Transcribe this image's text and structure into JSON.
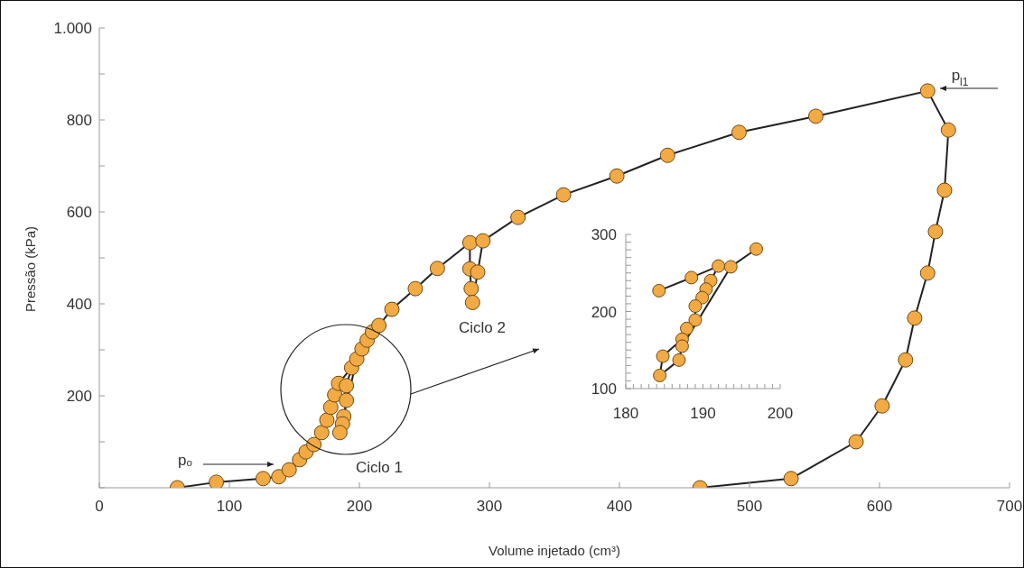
{
  "chart_data": [
    {
      "type": "line",
      "xlabel": "Volume injetado (cm³)",
      "ylabel": "Pressão (kPa)",
      "xlim": [
        0,
        700
      ],
      "xticks": [
        0,
        100,
        200,
        300,
        400,
        500,
        600,
        700
      ],
      "ylim": [
        0,
        1000
      ],
      "yticks": [
        {
          "value": 0,
          "label": null
        },
        {
          "value": 100,
          "label": null
        },
        200,
        {
          "value": 300,
          "label": null
        },
        400,
        {
          "value": 500,
          "label": null
        },
        600,
        {
          "value": 700,
          "label": null
        },
        800,
        {
          "value": 900,
          "label": null
        },
        {
          "value": 1000,
          "label": "1.000"
        }
      ],
      "marker": "circle",
      "series": [
        {
          "color": "#f2aa45",
          "x": [
            60,
            90,
            126,
            138,
            146,
            154,
            159,
            165,
            171,
            175,
            178,
            181,
            184,
            194,
            190,
            190,
            188,
            187,
            185,
            198,
            202,
            206,
            210,
            215,
            225,
            243,
            260,
            285,
            285,
            286,
            287,
            291,
            295,
            322,
            357,
            398,
            437,
            492,
            551,
            637,
            653,
            650,
            643,
            637,
            627,
            620,
            602,
            582,
            532,
            462
          ],
          "values": [
            0,
            12,
            20,
            24,
            39,
            61,
            78,
            94,
            120,
            147,
            175,
            202,
            227,
            261,
            222,
            190,
            155,
            139,
            120,
            280,
            302,
            321,
            339,
            353,
            388,
            433,
            477,
            533,
            476,
            433,
            403,
            469,
            537,
            588,
            637,
            678,
            723,
            773,
            808,
            863,
            778,
            647,
            557,
            467,
            369,
            278,
            178,
            100,
            20,
            0
          ]
        }
      ],
      "annotations": [
        "pₒ",
        "p$_{l1}$",
        "Ciclo 1",
        "Ciclo 2"
      ]
    },
    {
      "type": "line",
      "xlim": [
        180,
        200
      ],
      "xticks": [
        180,
        {
          "value": 181,
          "label": null
        },
        {
          "value": 182,
          "label": null
        },
        {
          "value": 183,
          "label": null
        },
        {
          "value": 184,
          "label": null
        },
        {
          "value": 185,
          "label": null
        },
        {
          "value": 186,
          "label": null
        },
        {
          "value": 187,
          "label": null
        },
        {
          "value": 188,
          "label": null
        },
        {
          "value": 189,
          "label": null
        },
        190,
        {
          "value": 191,
          "label": null
        },
        {
          "value": 192,
          "label": null
        },
        {
          "value": 193,
          "label": null
        },
        {
          "value": 194,
          "label": null
        },
        {
          "value": 195,
          "label": null
        },
        {
          "value": 196,
          "label": null
        },
        {
          "value": 197,
          "label": null
        },
        {
          "value": 198,
          "label": null
        },
        {
          "value": 199,
          "label": null
        },
        200
      ],
      "ylim": [
        100,
        300
      ],
      "yticks": [
        100,
        {
          "value": 110,
          "label": null
        },
        {
          "value": 120,
          "label": null
        },
        {
          "value": 130,
          "label": null
        },
        {
          "value": 140,
          "label": null
        },
        {
          "value": 150,
          "label": null
        },
        {
          "value": 160,
          "label": null
        },
        {
          "value": 170,
          "label": null
        },
        {
          "value": 180,
          "label": null
        },
        {
          "value": 190,
          "label": null
        },
        200,
        {
          "value": 210,
          "label": null
        },
        {
          "value": 220,
          "label": null
        },
        {
          "value": 230,
          "label": null
        },
        {
          "value": 240,
          "label": null
        },
        {
          "value": 250,
          "label": null
        },
        {
          "value": 260,
          "label": null
        },
        {
          "value": 270,
          "label": null
        },
        {
          "value": 280,
          "label": null
        },
        {
          "value": 290,
          "label": null
        },
        300
      ],
      "marker": "circle",
      "series": [
        {
          "color": "#f2aa45",
          "x": [
            184.3,
            188.5,
            192,
            191,
            190.4,
            189.9,
            189,
            189,
            187.9,
            187.3,
            184.8,
            184.4,
            186.9,
            187.3,
            193.6,
            196.9
          ],
          "values": [
            227,
            244,
            259,
            240,
            229,
            218,
            207,
            189,
            178,
            164,
            142,
            117,
            137,
            155,
            258,
            281
          ]
        }
      ]
    }
  ]
}
